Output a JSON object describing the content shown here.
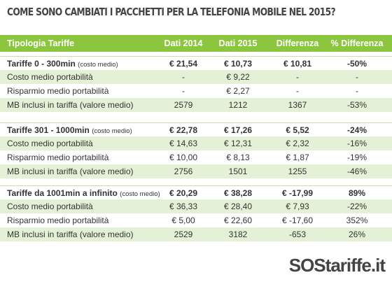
{
  "title": "COME SONO CAMBIATI I PACCHETTI PER LA TELEFONIA MOBILE NEL 2015?",
  "table": {
    "header": [
      "Tipologia Tariffe",
      "Dati 2014",
      "Dati 2015",
      "Differenza",
      "% Differenza"
    ],
    "groups": [
      {
        "title": "Tariffe 0 - 300min",
        "note": "(costo medio)",
        "values": [
          "€ 21,54",
          "€ 10,73",
          "€ 10,81",
          "-50%"
        ],
        "rows": [
          {
            "label": "Costo medio portabilità",
            "values": [
              "-",
              "€ 9,22",
              "-",
              "-"
            ]
          },
          {
            "label": "Risparmio medio portabilità",
            "values": [
              "-",
              "€ 2,27",
              "-",
              "-"
            ]
          },
          {
            "label": "MB inclusi in tariffa (valore medio)",
            "values": [
              "2579",
              "1212",
              "1367",
              "-53%"
            ]
          }
        ]
      },
      {
        "title": "Tariffe 301 - 1000min",
        "note": "(costo medio)",
        "values": [
          "€ 22,78",
          "€ 17,26",
          "€ 5,52",
          "-24%"
        ],
        "rows": [
          {
            "label": "Costo medio portabilità",
            "values": [
              "€ 14,63",
              "€ 12,31",
              "€ 2,32",
              "-16%"
            ]
          },
          {
            "label": "Risparmio medio portabilità",
            "values": [
              "€ 10,00",
              "€ 8,13",
              "€ 1,87",
              "-19%"
            ]
          },
          {
            "label": "MB inclusi in tariffa (valore medio)",
            "values": [
              "2756",
              "1501",
              "1255",
              "-46%"
            ]
          }
        ]
      },
      {
        "title": "Tariffe da 1001min a infinito",
        "note": "(costo medio)",
        "values": [
          "€ 20,29",
          "€ 38,28",
          "€ -17,99",
          "89%"
        ],
        "rows": [
          {
            "label": "Costo medio portabilità",
            "values": [
              "€ 36,33",
              "€ 28,40",
              "€ 7,93",
              "-22%"
            ]
          },
          {
            "label": "Risparmio medio portabilità",
            "values": [
              "€ 5,00",
              "€ 22,60",
              "€ -17,60",
              "352%"
            ]
          },
          {
            "label": "MB inclusi in tariffa (valore medio)",
            "values": [
              "2529",
              "3182",
              "-653",
              "26%"
            ]
          }
        ]
      }
    ]
  },
  "logo": {
    "prefix": "SOS",
    "suffix": "tariffe.it"
  }
}
